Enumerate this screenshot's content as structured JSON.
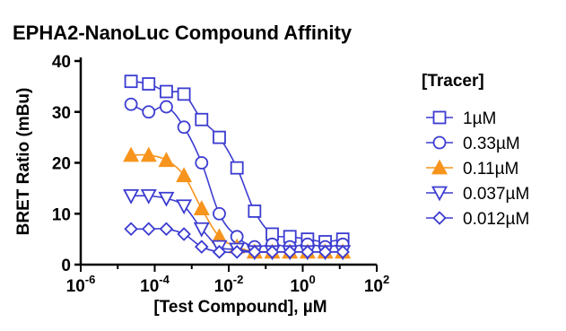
{
  "chart_data": {
    "type": "scatter",
    "title": "EPHA2-NanoLuc Compound Affinity",
    "xlabel": "[Test Compound], µM",
    "ylabel": "BRET Ratio (mBu)",
    "x_scale": "log",
    "xlim": [
      1e-06,
      100
    ],
    "ylim": [
      0,
      40
    ],
    "x_ticks": [
      {
        "base": "10",
        "exp": "-6",
        "value": 1e-06
      },
      {
        "base": "10",
        "exp": "-4",
        "value": 0.0001
      },
      {
        "base": "10",
        "exp": "-2",
        "value": 0.01
      },
      {
        "base": "10",
        "exp": "0",
        "value": 1
      },
      {
        "base": "10",
        "exp": "2",
        "value": 100
      }
    ],
    "y_ticks": [
      "0",
      "10",
      "20",
      "30",
      "40"
    ],
    "y_tick_values": [
      0,
      10,
      20,
      30,
      40
    ],
    "legend_title": "[Tracer]",
    "legend_position": "right",
    "grid": false,
    "x": [
      2.29e-05,
      6.86e-05,
      0.000206,
      0.000617,
      0.00185,
      0.00556,
      0.0167,
      0.05,
      0.15,
      0.45,
      1.35,
      4.05,
      12.1
    ],
    "series": [
      {
        "name": "1µM",
        "marker": "square-open",
        "color": "#3b3bd1",
        "values": [
          36,
          35.5,
          34,
          33.5,
          28.5,
          25,
          19,
          10.5,
          6,
          5.5,
          5,
          4.5,
          5
        ]
      },
      {
        "name": "0.33µM",
        "marker": "circle-open",
        "color": "#3b3bd1",
        "values": [
          31.5,
          30,
          31,
          27,
          20,
          10,
          5.5,
          3.5,
          4,
          3.5,
          4,
          3.5,
          4
        ]
      },
      {
        "name": "0.11µM",
        "marker": "triangle-up-filled",
        "color": "#f7941d",
        "values": [
          21.5,
          21.5,
          20.5,
          17.5,
          11,
          5.5,
          3.5,
          2.5,
          2.5,
          2.5,
          2.5,
          2.5,
          2.5
        ]
      },
      {
        "name": "0.037µM",
        "marker": "triangle-down-open",
        "color": "#3b3bd1",
        "values": [
          13.5,
          13.5,
          13,
          11.5,
          7,
          3.5,
          3,
          2.5,
          2.5,
          2.5,
          2.5,
          2.5,
          2.5
        ]
      },
      {
        "name": "0.012µM",
        "marker": "diamond-open",
        "color": "#3b3bd1",
        "values": [
          7,
          7,
          7,
          6,
          3.5,
          2.5,
          2.5,
          2.5,
          2.5,
          2.5,
          2.5,
          2.5,
          2.5
        ]
      }
    ]
  }
}
